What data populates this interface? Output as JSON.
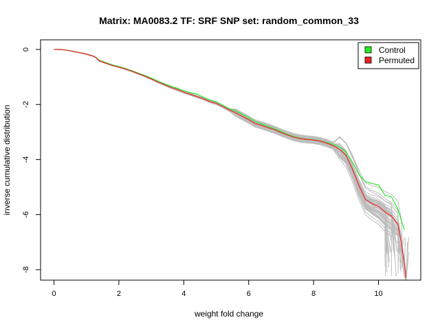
{
  "chart_data": {
    "type": "line",
    "title": "Matrix: MA0083.2 TF: SRF SNP set: random_common_33",
    "xlabel": "weight fold change",
    "ylabel": "inverse cumulative distribution",
    "xlim": [
      0,
      11
    ],
    "ylim": [
      -8,
      0
    ],
    "x_ticks": [
      0,
      2,
      4,
      6,
      8,
      10
    ],
    "y_ticks": [
      0,
      -2,
      -4,
      -6,
      -8
    ],
    "grid": false,
    "legend_position": "top-right",
    "legend": [
      {
        "label": "Control",
        "color": "#22ee22"
      },
      {
        "label": "Permuted",
        "color": "#ee2222"
      }
    ],
    "background_series_color": "#bdbdbd",
    "series": [
      {
        "name": "Control",
        "color": "#22ee22",
        "x": [
          0,
          0.2,
          0.4,
          0.6,
          0.8,
          1.0,
          1.2,
          1.3,
          1.4,
          1.6,
          1.8,
          2.0,
          2.2,
          2.4,
          2.6,
          2.8,
          3.0,
          3.2,
          3.4,
          3.6,
          3.8,
          4.0,
          4.2,
          4.4,
          4.6,
          4.8,
          5.0,
          5.2,
          5.4,
          5.6,
          5.8,
          6.0,
          6.2,
          6.4,
          6.6,
          6.8,
          7.0,
          7.2,
          7.4,
          7.6,
          7.8,
          8.0,
          8.2,
          8.4,
          8.6,
          8.8,
          9.0,
          9.2,
          9.4,
          9.6,
          9.8,
          10.0,
          10.2,
          10.4,
          10.6,
          10.7,
          10.8
        ],
        "y": [
          0,
          0,
          -0.03,
          -0.07,
          -0.12,
          -0.17,
          -0.24,
          -0.3,
          -0.4,
          -0.48,
          -0.56,
          -0.62,
          -0.69,
          -0.77,
          -0.86,
          -0.95,
          -1.04,
          -1.15,
          -1.25,
          -1.33,
          -1.41,
          -1.5,
          -1.57,
          -1.62,
          -1.73,
          -1.83,
          -1.9,
          -2.02,
          -2.15,
          -2.23,
          -2.36,
          -2.48,
          -2.62,
          -2.71,
          -2.79,
          -2.88,
          -2.99,
          -3.09,
          -3.17,
          -3.23,
          -3.26,
          -3.28,
          -3.32,
          -3.38,
          -3.45,
          -3.54,
          -3.72,
          -4.1,
          -4.55,
          -4.8,
          -4.87,
          -4.92,
          -5.3,
          -5.35,
          -5.8,
          -6.2,
          -6.55
        ]
      },
      {
        "name": "Permuted",
        "color": "#ee2222",
        "x": [
          0,
          0.2,
          0.4,
          0.6,
          0.8,
          1.0,
          1.2,
          1.3,
          1.4,
          1.6,
          1.8,
          2.0,
          2.2,
          2.4,
          2.6,
          2.8,
          3.0,
          3.2,
          3.4,
          3.6,
          3.8,
          4.0,
          4.2,
          4.4,
          4.6,
          4.8,
          5.0,
          5.2,
          5.4,
          5.6,
          5.8,
          6.0,
          6.2,
          6.4,
          6.6,
          6.8,
          7.0,
          7.2,
          7.4,
          7.6,
          7.8,
          8.0,
          8.2,
          8.4,
          8.6,
          8.8,
          9.0,
          9.2,
          9.4,
          9.6,
          9.8,
          10.0,
          10.2,
          10.4,
          10.6,
          10.7,
          10.8,
          10.85
        ],
        "y": [
          0,
          0,
          -0.03,
          -0.07,
          -0.12,
          -0.17,
          -0.24,
          -0.3,
          -0.42,
          -0.5,
          -0.58,
          -0.64,
          -0.71,
          -0.79,
          -0.88,
          -0.97,
          -1.07,
          -1.18,
          -1.28,
          -1.38,
          -1.46,
          -1.55,
          -1.63,
          -1.71,
          -1.79,
          -1.89,
          -1.96,
          -2.07,
          -2.2,
          -2.3,
          -2.43,
          -2.55,
          -2.69,
          -2.76,
          -2.84,
          -2.92,
          -3.02,
          -3.11,
          -3.19,
          -3.24,
          -3.27,
          -3.29,
          -3.33,
          -3.4,
          -3.5,
          -3.62,
          -3.85,
          -4.35,
          -4.95,
          -5.45,
          -5.6,
          -5.7,
          -5.9,
          -6.05,
          -6.35,
          -7.0,
          -7.8,
          -8.3
        ]
      }
    ]
  }
}
